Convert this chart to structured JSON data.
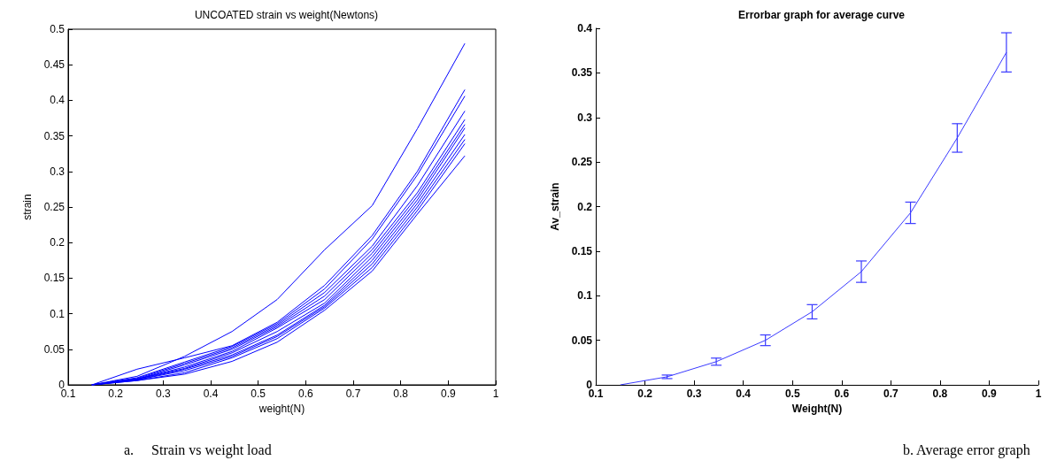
{
  "chart_data": [
    {
      "type": "line",
      "title": "UNCOATED strain vs weight(Newtons)",
      "xlabel": "weight(N)",
      "ylabel": "strain",
      "annotations": [
        "a.     Strain vs weight load"
      ],
      "x": [
        0.15,
        0.245,
        0.345,
        0.445,
        0.54,
        0.64,
        0.74,
        0.835,
        0.935
      ],
      "xlim": [
        0.1,
        1
      ],
      "xticks": [
        0.1,
        0.2,
        0.3,
        0.4,
        0.5,
        0.6,
        0.7,
        0.8,
        0.9,
        1
      ],
      "ylim": [
        0,
        0.5
      ],
      "yticks": [
        0,
        0.05,
        0.1,
        0.15,
        0.2,
        0.25,
        0.3,
        0.35,
        0.4,
        0.45,
        0.5
      ],
      "series": [
        {
          "color": "#0000ff",
          "values": [
            0,
            0.012,
            0.04,
            0.075,
            0.12,
            0.19,
            0.252,
            0.36,
            0.48
          ]
        },
        {
          "color": "#0000ff",
          "values": [
            0,
            0.022,
            0.038,
            0.055,
            0.088,
            0.14,
            0.21,
            0.3,
            0.415
          ]
        },
        {
          "color": "#0000ff",
          "values": [
            0,
            0.01,
            0.032,
            0.054,
            0.086,
            0.135,
            0.205,
            0.295,
            0.406
          ]
        },
        {
          "color": "#0000ff",
          "values": [
            0,
            0.009,
            0.03,
            0.052,
            0.084,
            0.13,
            0.195,
            0.28,
            0.385
          ]
        },
        {
          "color": "#0000ff",
          "values": [
            0,
            0.008,
            0.028,
            0.05,
            0.082,
            0.125,
            0.19,
            0.27,
            0.373
          ]
        },
        {
          "color": "#0000ff",
          "values": [
            0,
            0.008,
            0.025,
            0.047,
            0.08,
            0.12,
            0.185,
            0.265,
            0.366
          ]
        },
        {
          "color": "#0000ff",
          "values": [
            0,
            0.008,
            0.023,
            0.045,
            0.075,
            0.115,
            0.18,
            0.26,
            0.361
          ]
        },
        {
          "color": "#0000ff",
          "values": [
            0,
            0.007,
            0.022,
            0.042,
            0.07,
            0.112,
            0.175,
            0.255,
            0.352
          ]
        },
        {
          "color": "#0000ff",
          "values": [
            0,
            0.007,
            0.02,
            0.04,
            0.068,
            0.11,
            0.17,
            0.25,
            0.345
          ]
        },
        {
          "color": "#0000ff",
          "values": [
            0,
            0.006,
            0.017,
            0.038,
            0.065,
            0.108,
            0.165,
            0.245,
            0.339
          ]
        },
        {
          "color": "#0000ff",
          "values": [
            0,
            0.006,
            0.015,
            0.033,
            0.06,
            0.105,
            0.16,
            0.24,
            0.322
          ]
        }
      ]
    },
    {
      "type": "line",
      "title": "Errorbar graph for average curve",
      "xlabel": "Weight(N)",
      "ylabel": "Av_strain",
      "annotations": [
        "b. Average error graph"
      ],
      "x": [
        0.15,
        0.245,
        0.345,
        0.445,
        0.54,
        0.64,
        0.74,
        0.835,
        0.935
      ],
      "xlim": [
        0.1,
        1
      ],
      "xticks": [
        0.1,
        0.2,
        0.3,
        0.4,
        0.5,
        0.6,
        0.7,
        0.8,
        0.9,
        1
      ],
      "ylim": [
        0,
        0.4
      ],
      "yticks": [
        0,
        0.05,
        0.1,
        0.15,
        0.2,
        0.25,
        0.3,
        0.35,
        0.4
      ],
      "series": [
        {
          "color": "#3a3aff",
          "values": [
            0,
            0.009,
            0.026,
            0.05,
            0.082,
            0.127,
            0.193,
            0.277,
            0.373
          ],
          "errors": [
            null,
            0.002,
            0.004,
            0.006,
            0.008,
            0.012,
            0.012,
            0.016,
            0.022
          ]
        }
      ]
    }
  ]
}
